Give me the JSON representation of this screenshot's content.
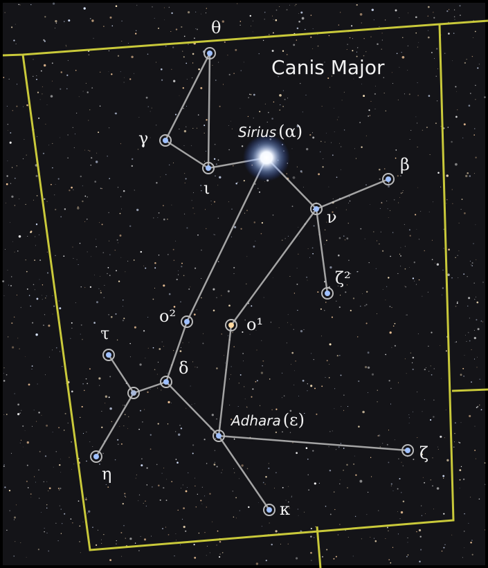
{
  "title": "Canis Major",
  "stars": [
    {
      "letter": "θ"
    },
    {
      "letter": "γ"
    },
    {
      "letter": "ι"
    },
    {
      "name": "Sirius",
      "letter": "(α)"
    },
    {
      "letter": "β"
    },
    {
      "letter": "ν"
    },
    {
      "letter": "ζ²"
    },
    {
      "letter": "ο²"
    },
    {
      "letter": "ο¹"
    },
    {
      "letter": "τ"
    },
    {
      "letter": "δ"
    },
    {
      "letter": "η"
    },
    {
      "name": "Adhara",
      "letter": "(ε)"
    },
    {
      "letter": "ζ"
    },
    {
      "letter": "κ"
    }
  ]
}
